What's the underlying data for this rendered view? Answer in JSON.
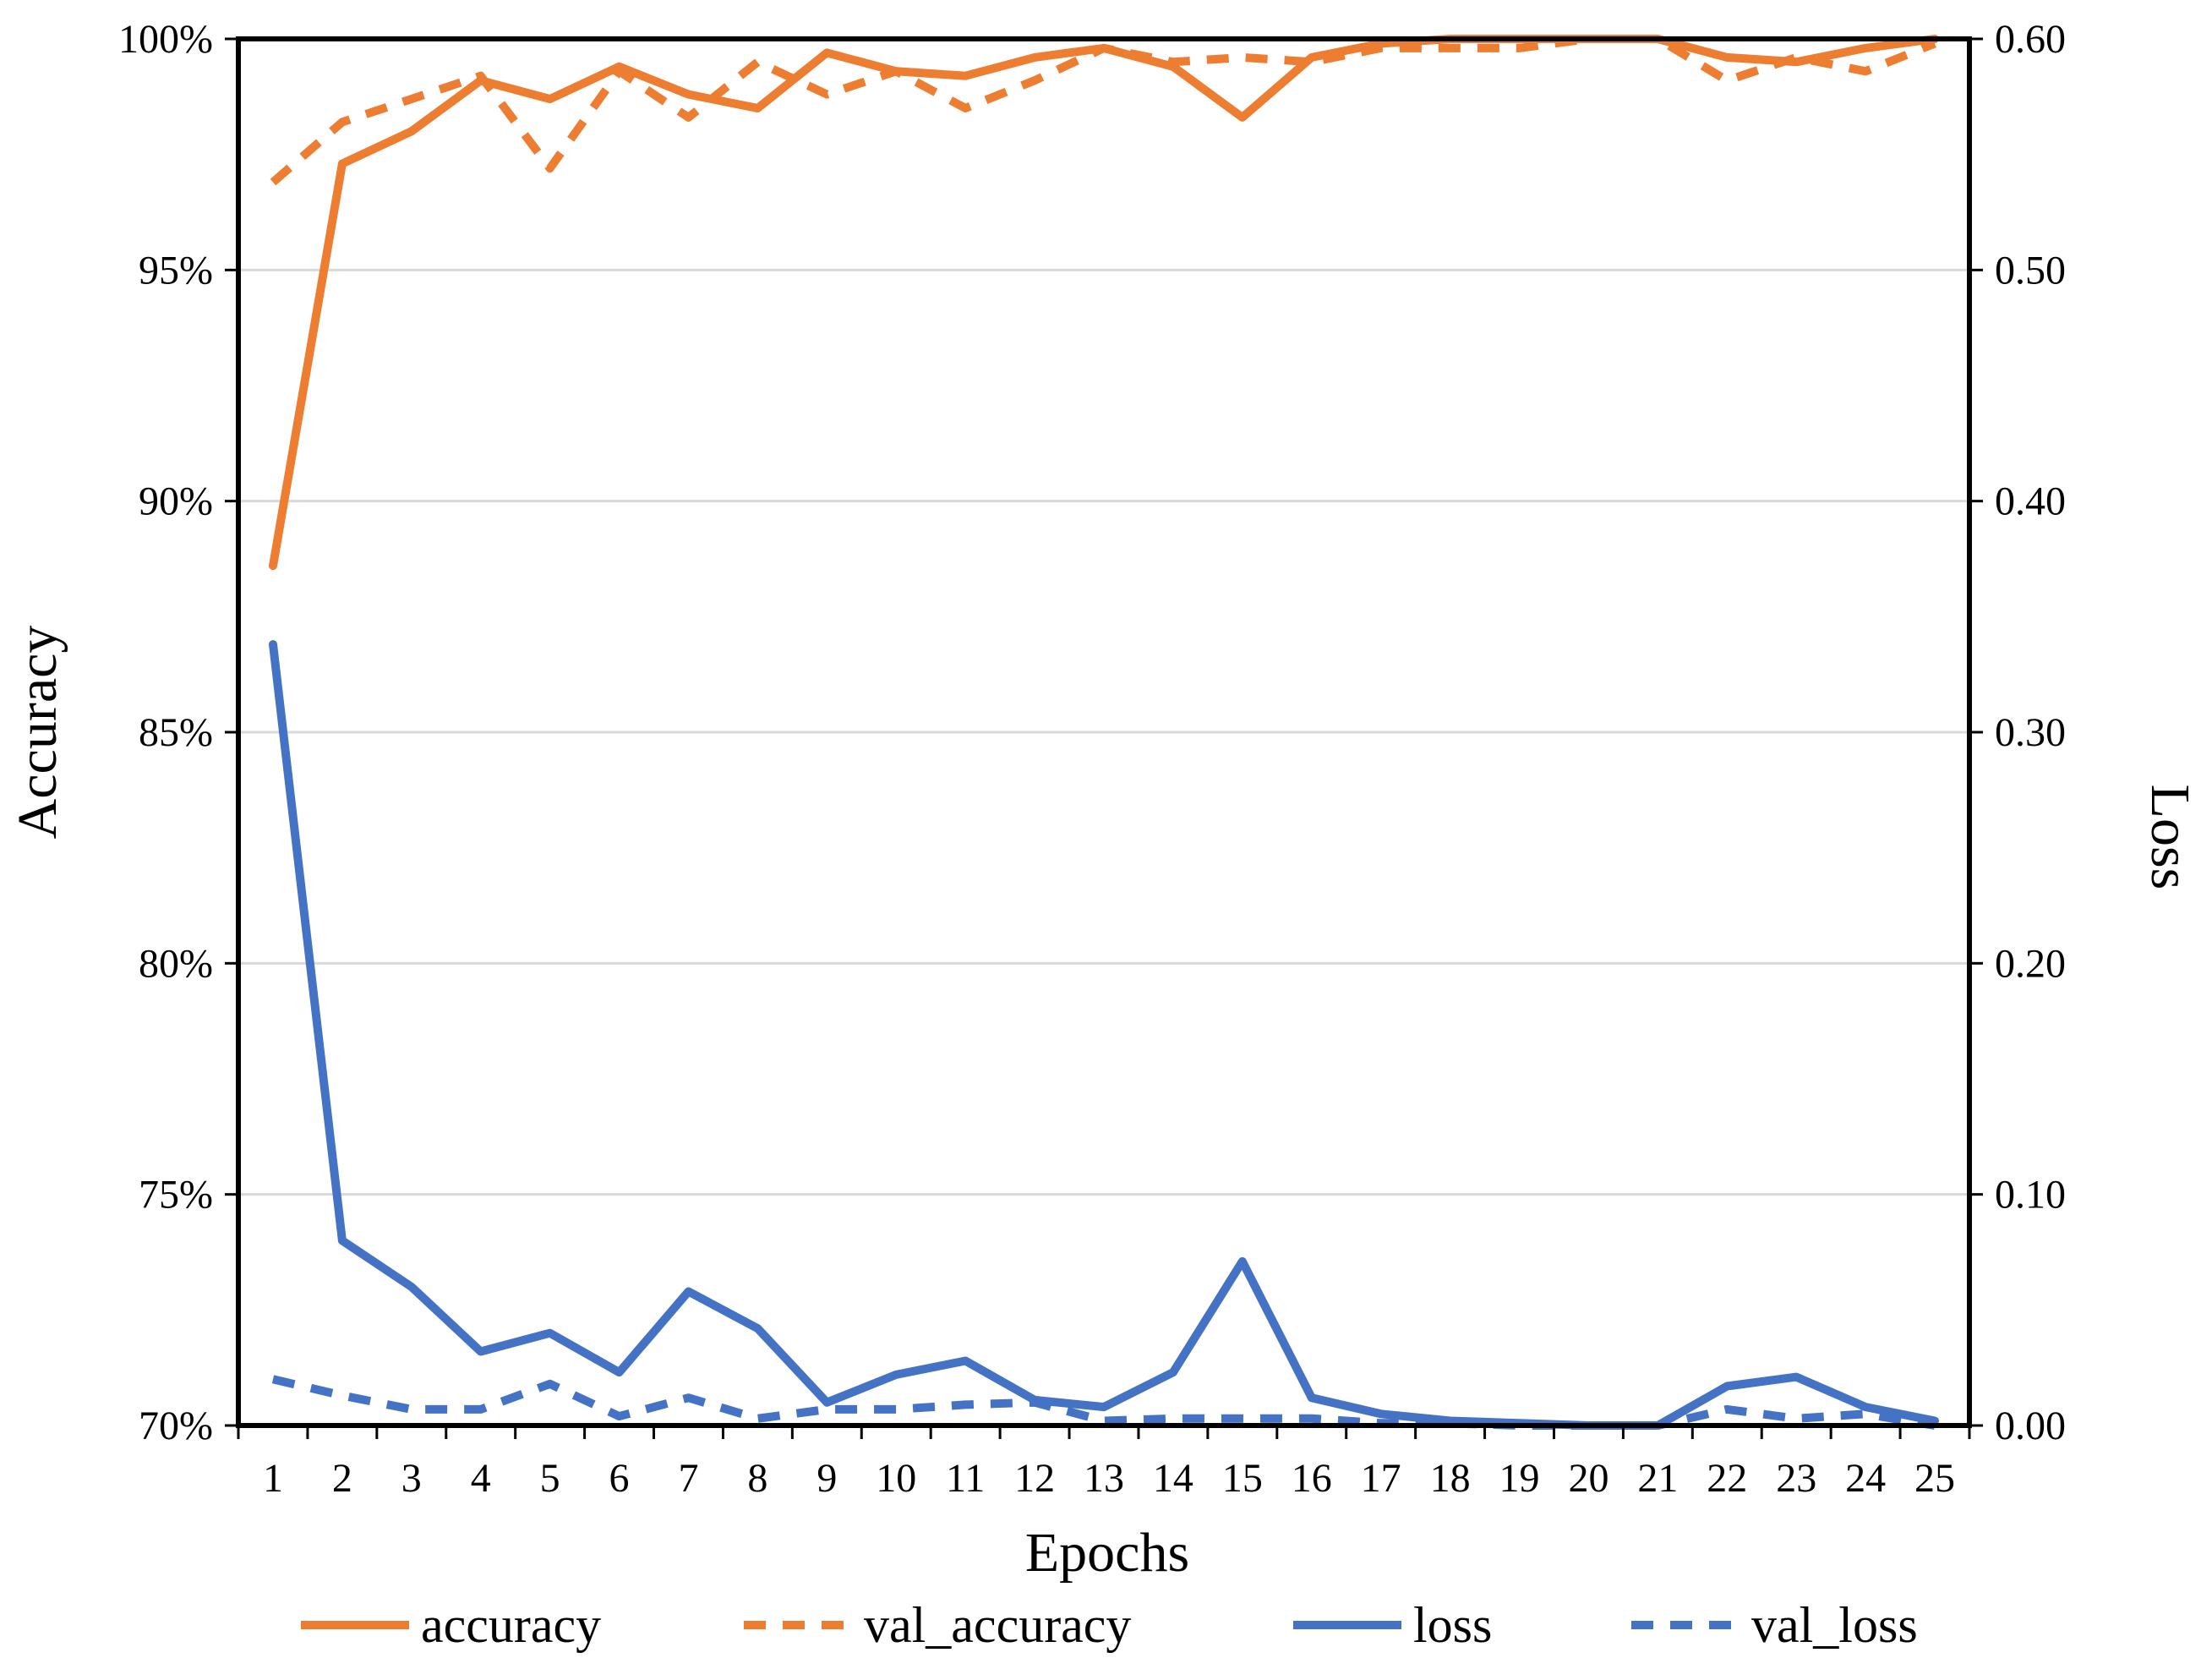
{
  "chart_data": {
    "type": "line",
    "xlabel": "Epochs",
    "ylabel": "Accuracy",
    "y2label": "Loss",
    "categories": [
      "1",
      "2",
      "3",
      "4",
      "5",
      "6",
      "7",
      "8",
      "9",
      "10",
      "11",
      "12",
      "13",
      "14",
      "15",
      "16",
      "17",
      "18",
      "19",
      "20",
      "21",
      "22",
      "23",
      "24",
      "25"
    ],
    "ylim": [
      0.7,
      1.0
    ],
    "y2lim": [
      0.0,
      0.6
    ],
    "yticks": [
      "70%",
      "75%",
      "80%",
      "85%",
      "90%",
      "95%",
      "100%"
    ],
    "y2ticks": [
      "0.00",
      "0.10",
      "0.20",
      "0.30",
      "0.40",
      "0.50",
      "0.60"
    ],
    "grid": true,
    "legend_position": "bottom",
    "series": [
      {
        "name": "accuracy",
        "axis": "left",
        "color": "#ED7D31",
        "dash": "solid",
        "values": [
          0.886,
          0.973,
          0.98,
          0.991,
          0.987,
          0.994,
          0.988,
          0.985,
          0.997,
          0.993,
          0.992,
          0.996,
          0.998,
          0.994,
          0.983,
          0.996,
          0.999,
          1.0,
          1.0,
          1.0,
          1.0,
          0.996,
          0.995,
          0.998,
          1.0
        ]
      },
      {
        "name": "val_accuracy",
        "axis": "left",
        "color": "#ED7D31",
        "dash": "dashed",
        "values": [
          0.969,
          0.982,
          0.987,
          0.992,
          0.972,
          0.993,
          0.983,
          0.995,
          0.988,
          0.993,
          0.985,
          0.991,
          0.998,
          0.995,
          0.996,
          0.995,
          0.998,
          0.998,
          0.998,
          1.0,
          1.0,
          0.991,
          0.996,
          0.993,
          0.999
        ]
      },
      {
        "name": "loss",
        "axis": "right",
        "color": "#4472C4",
        "dash": "solid",
        "values": [
          0.338,
          0.08,
          0.06,
          0.032,
          0.04,
          0.023,
          0.058,
          0.042,
          0.01,
          0.022,
          0.028,
          0.011,
          0.008,
          0.023,
          0.071,
          0.012,
          0.005,
          0.002,
          0.001,
          0.0,
          0.0,
          0.017,
          0.021,
          0.008,
          0.002
        ]
      },
      {
        "name": "val_loss",
        "axis": "right",
        "color": "#4472C4",
        "dash": "dashed",
        "values": [
          0.02,
          0.013,
          0.007,
          0.007,
          0.018,
          0.004,
          0.012,
          0.003,
          0.007,
          0.007,
          0.009,
          0.01,
          0.002,
          0.003,
          0.003,
          0.003,
          0.001,
          0.001,
          0.0,
          0.0,
          0.0,
          0.007,
          0.003,
          0.005,
          0.0
        ]
      }
    ]
  }
}
